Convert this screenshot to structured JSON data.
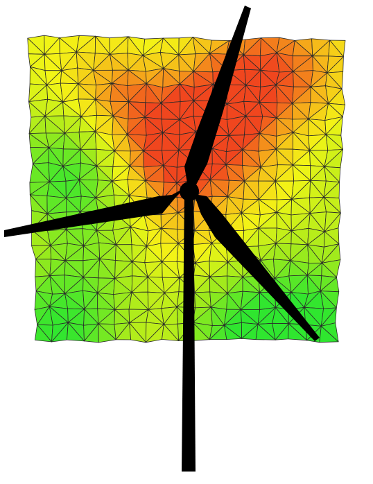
{
  "figure": {
    "type": "triangulated-mesh-with-wind-turbine",
    "background_color": "#ffffff",
    "mesh": {
      "columns": 19,
      "rows": 19,
      "triangulation": "alternating-diagonals",
      "edge_color": "#2a2a2a",
      "colormap": [
        "#2fe62f",
        "#9fea1c",
        "#f3f516",
        "#f6b41a",
        "#f0461e"
      ],
      "hotspots": [
        {
          "u": 0.58,
          "v": 0.28,
          "strength": 1.0,
          "spread": 0.16
        },
        {
          "u": 0.43,
          "v": 0.37,
          "strength": 0.8,
          "spread": 0.13
        },
        {
          "u": 0.7,
          "v": 0.06,
          "strength": 0.6,
          "spread": 0.14
        },
        {
          "u": 0.28,
          "v": 0.17,
          "strength": 0.5,
          "spread": 0.09
        },
        {
          "u": 0.88,
          "v": 0.15,
          "strength": 0.45,
          "spread": 0.12
        },
        {
          "u": 0.47,
          "v": 0.62,
          "strength": 0.3,
          "spread": 0.12
        }
      ],
      "cool_zones": [
        {
          "u": 0.1,
          "v": 0.45,
          "strength": 0.5,
          "spread": 0.14
        },
        {
          "u": 0.1,
          "v": 0.95,
          "strength": 0.55,
          "spread": 0.18
        },
        {
          "u": 0.97,
          "v": 0.95,
          "strength": 0.55,
          "spread": 0.18
        },
        {
          "u": 0.65,
          "v": 1.0,
          "strength": 0.4,
          "spread": 0.15
        }
      ]
    },
    "turbine": {
      "color": "#000000",
      "blade_count": 3
    }
  }
}
